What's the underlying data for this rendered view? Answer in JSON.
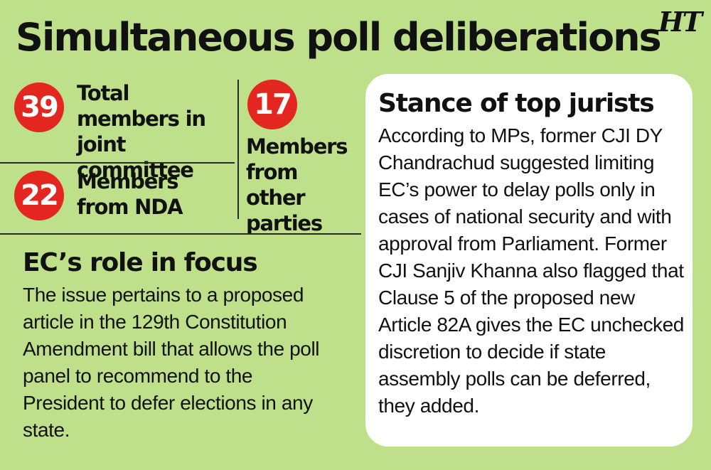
{
  "header": {
    "title": "Simultaneous poll deliberations",
    "logo_text": "HT"
  },
  "stats": [
    {
      "number": "39",
      "label": "Total members in joint committee"
    },
    {
      "number": "22",
      "label": "Members from NDA"
    },
    {
      "number": "17",
      "label": "Members from other parties"
    }
  ],
  "ec_role": {
    "heading": "EC’s role in focus",
    "body": "The issue pertains to a proposed article in the 129th Constitution Amendment bill that allows the poll panel to recommend to the President to defer elections in any state."
  },
  "jurists": {
    "heading": "Stance of top jurists",
    "body": "According to MPs, former CJI DY Chandrachud suggested limiting EC’s power to delay polls only in cases of national security and with  approval from Parliament. Former CJI Sanjiv Khanna also flagged that Clause 5 of the proposed new Article 82A gives the EC unchecked discretion to decide if state assembly polls can be deferred, they added."
  },
  "colors": {
    "background": "#bfe08a",
    "badge": "#e3261f",
    "card": "#ffffff",
    "text": "#111111"
  }
}
